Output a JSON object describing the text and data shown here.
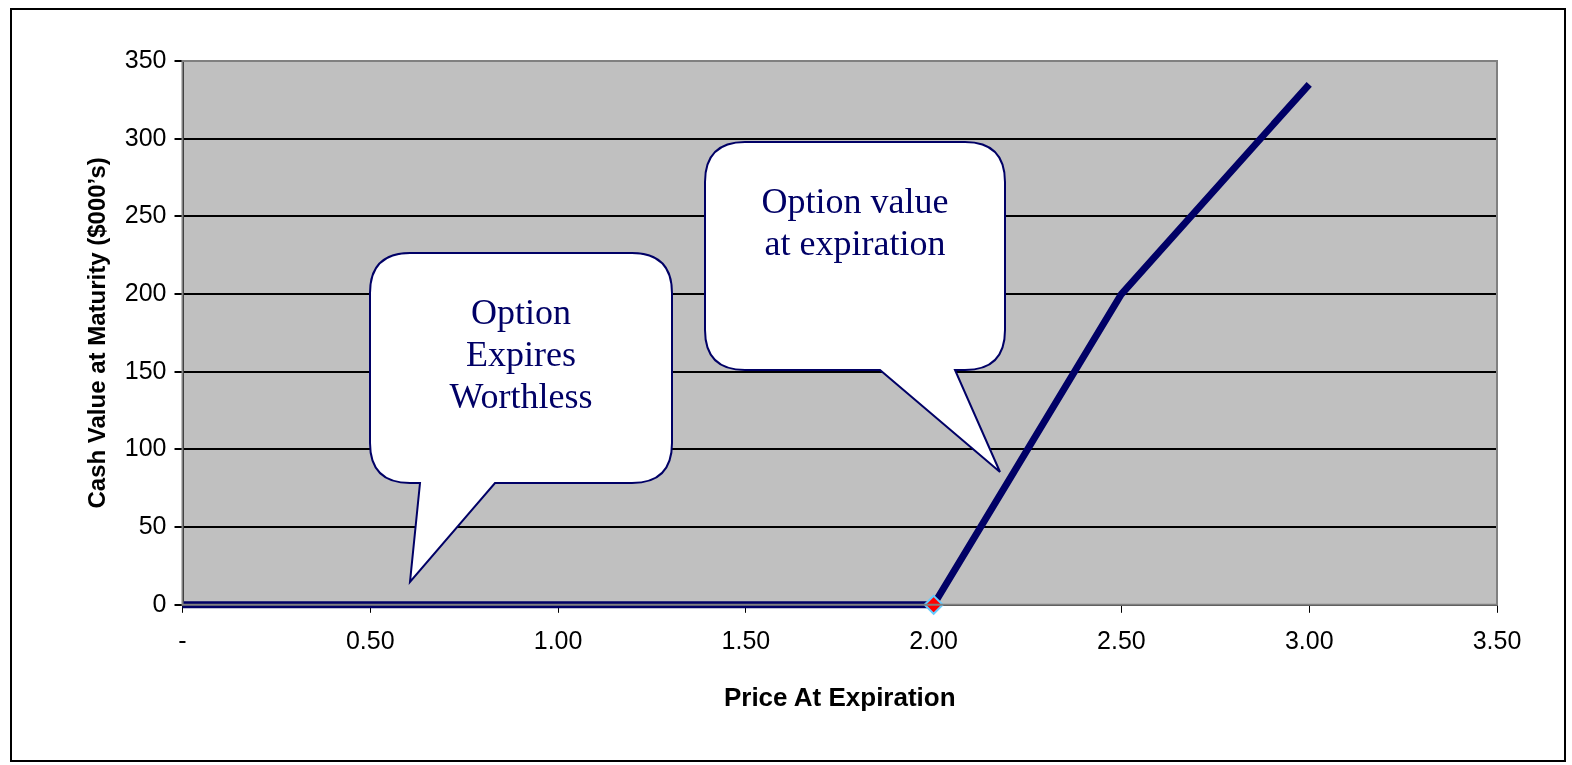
{
  "chart_data": {
    "type": "line",
    "xlabel": "Price At Expiration",
    "ylabel": "Cash Value at Maturity ($000’s)",
    "series": [
      {
        "color": "#000066",
        "x": [
          0,
          2.0,
          2.5,
          3.0
        ],
        "values": [
          0,
          0,
          200,
          335
        ],
        "marker": "none"
      },
      {
        "type": "scatter",
        "color": "#ff0000",
        "x": [
          2.0
        ],
        "values": [
          0
        ],
        "marker": "diamond"
      }
    ],
    "xlim": [
      0,
      3.5
    ],
    "xticks": [
      {
        "value": 0,
        "label": "-"
      },
      {
        "value": 0.5,
        "label": "0.50"
      },
      {
        "value": 1,
        "label": "1.00"
      },
      {
        "value": 1.5,
        "label": "1.50"
      },
      {
        "value": 2,
        "label": "2.00"
      },
      {
        "value": 2.5,
        "label": "2.50"
      },
      {
        "value": 3,
        "label": "3.00"
      },
      {
        "value": 3.5,
        "label": "3.50"
      }
    ],
    "ylim": [
      0,
      350
    ],
    "yticks": [
      0,
      50,
      100,
      150,
      200,
      250,
      300,
      350
    ],
    "grid": "y",
    "legend": false,
    "annotations": [
      "Option Expires Worthless",
      "Option value at expiration"
    ]
  }
}
